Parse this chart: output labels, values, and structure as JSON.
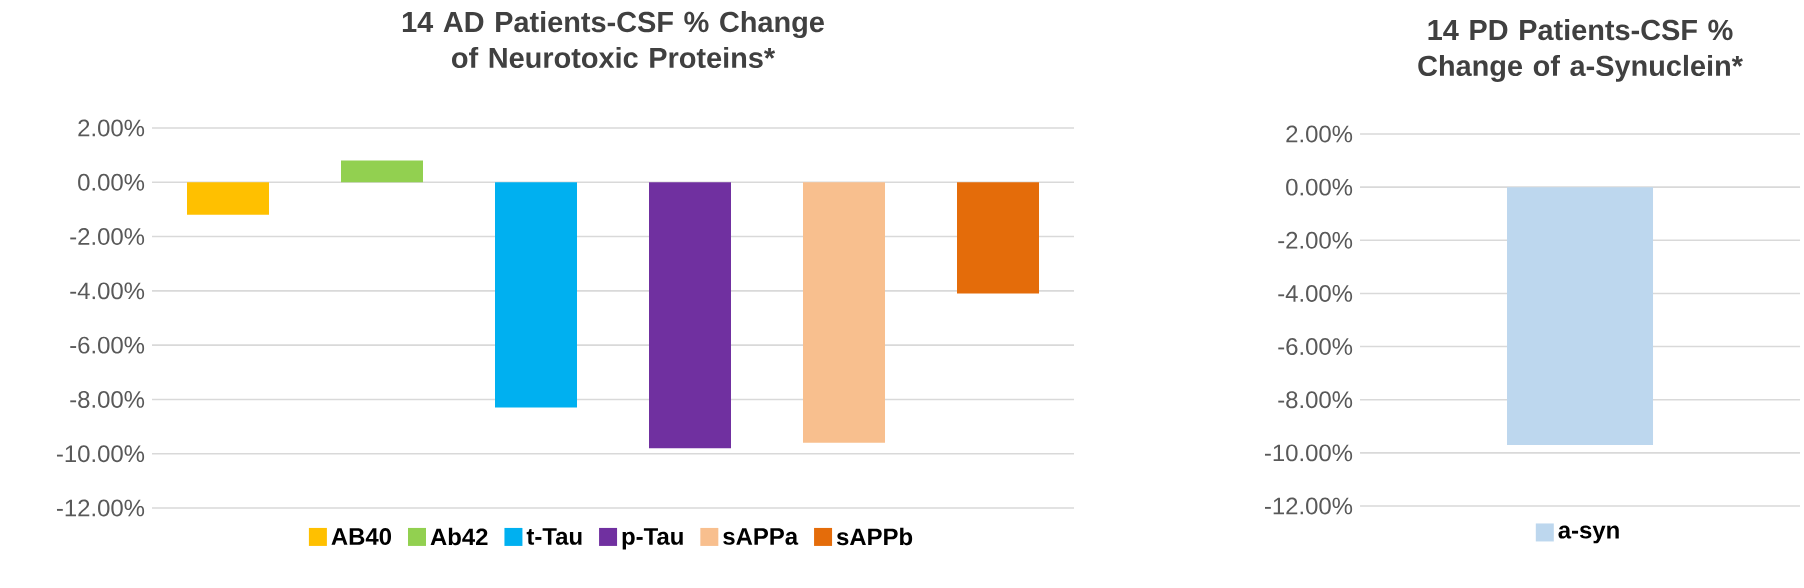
{
  "chart_data": [
    {
      "type": "bar",
      "title": "14 AD Patients-CSF % Change of Neurotoxic Proteins*",
      "categories": [
        null
      ],
      "series": [
        {
          "name": "AB40",
          "color": "#ffc000",
          "values": [
            -1.2
          ]
        },
        {
          "name": "Ab42",
          "color": "#92d050",
          "values": [
            0.8
          ]
        },
        {
          "name": "t-Tau",
          "color": "#00b0f0",
          "values": [
            -8.3
          ]
        },
        {
          "name": "p-Tau",
          "color": "#7030a0",
          "values": [
            -9.8
          ]
        },
        {
          "name": "sAPPa",
          "color": "#f8bf8e",
          "values": [
            -9.6
          ]
        },
        {
          "name": "sAPPb",
          "color": "#e46c0a",
          "values": [
            -4.1
          ]
        }
      ],
      "ylim": [
        -12,
        2
      ],
      "yticks": [
        {
          "value": 2,
          "label": "2.00%"
        },
        {
          "value": 0,
          "label": "0.00%"
        },
        {
          "value": -2,
          "label": "-2.00%"
        },
        {
          "value": -4,
          "label": "-4.00%"
        },
        {
          "value": -6,
          "label": "-6.00%"
        },
        {
          "value": -8,
          "label": "-8.00%"
        },
        {
          "value": -10,
          "label": "-10.00%"
        },
        {
          "value": -12,
          "label": "-12.00%"
        }
      ],
      "grid": "y",
      "legend": "bottom"
    },
    {
      "type": "bar",
      "title": "14 PD Patients-CSF % Change of a-Synuclein*",
      "categories": [
        null
      ],
      "series": [
        {
          "name": "a-syn",
          "color": "#bdd7ee",
          "values": [
            -9.7
          ]
        }
      ],
      "ylim": [
        -12,
        2
      ],
      "yticks": [
        {
          "value": 2,
          "label": "2.00%"
        },
        {
          "value": 0,
          "label": "0.00%"
        },
        {
          "value": -2,
          "label": "-2.00%"
        },
        {
          "value": -4,
          "label": "-4.00%"
        },
        {
          "value": -6,
          "label": "-6.00%"
        },
        {
          "value": -8,
          "label": "-8.00%"
        },
        {
          "value": -10,
          "label": "-10.00%"
        },
        {
          "value": -12,
          "label": "-12.00%"
        }
      ],
      "grid": "y",
      "legend": "bottom"
    }
  ]
}
